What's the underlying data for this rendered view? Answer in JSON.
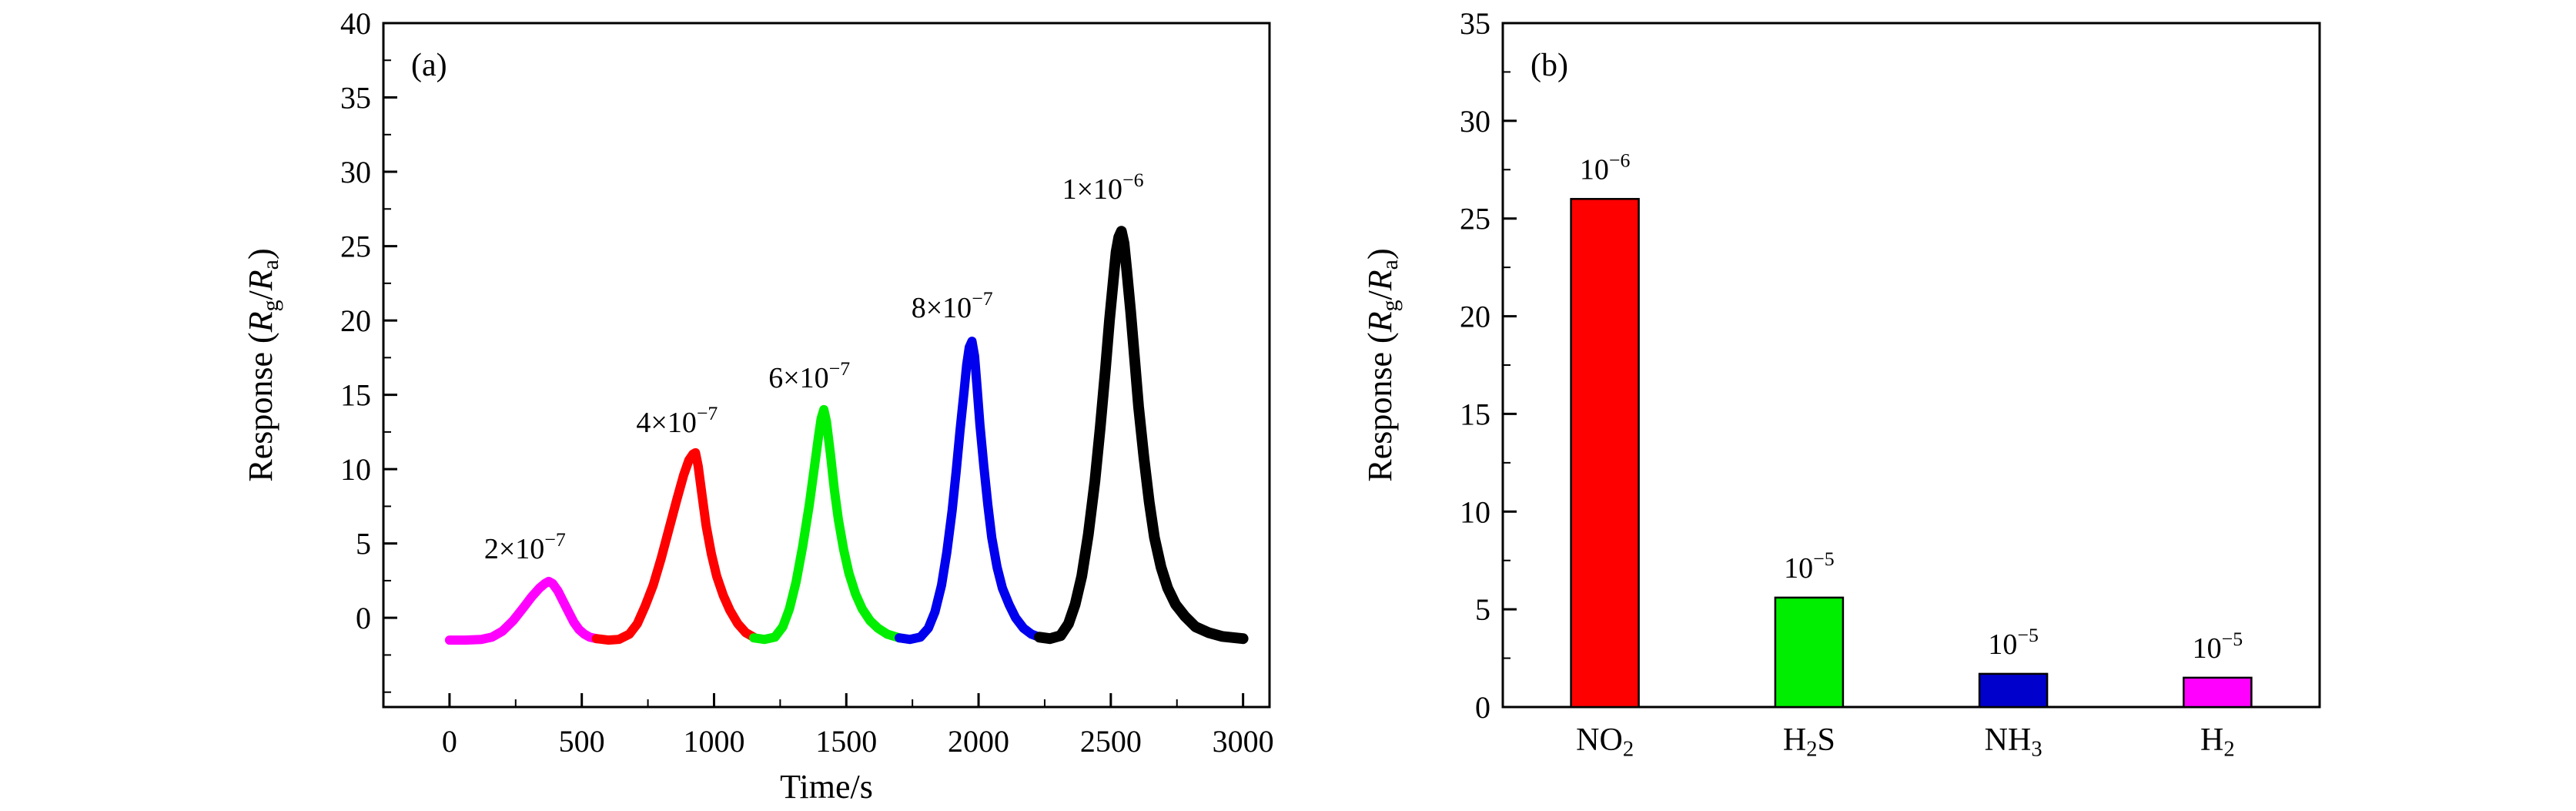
{
  "page": {
    "background": "#ffffff",
    "text_color": "#000000"
  },
  "chart_data": [
    {
      "id": "panel-a",
      "panel_label": "(a)",
      "type": "line",
      "title": "",
      "xlabel": "Time/s",
      "ylabel": "Response ($R$_{g}/$R$_{a})",
      "xlim": [
        -250,
        3100
      ],
      "ylim": [
        -6,
        40
      ],
      "xticks": [
        0,
        500,
        1000,
        1500,
        2000,
        2500,
        3000
      ],
      "yticks": [
        0,
        5,
        10,
        15,
        20,
        25,
        30,
        35,
        40
      ],
      "x_minor_step": 250,
      "y_minor_step": 2.5,
      "grid": false,
      "legend": "none",
      "series": [
        {
          "id": "conc-2e-7",
          "name": "2×10^{−7}",
          "color": "#ff00ff",
          "width": 12,
          "points": [
            [
              0,
              -1.5
            ],
            [
              60,
              -1.5
            ],
            [
              120,
              -1.45
            ],
            [
              160,
              -1.3
            ],
            [
              200,
              -0.9
            ],
            [
              240,
              -0.2
            ],
            [
              280,
              0.7
            ],
            [
              310,
              1.4
            ],
            [
              340,
              2.0
            ],
            [
              360,
              2.3
            ],
            [
              375,
              2.45
            ],
            [
              390,
              2.3
            ],
            [
              410,
              1.8
            ],
            [
              430,
              1.1
            ],
            [
              450,
              0.4
            ],
            [
              470,
              -0.3
            ],
            [
              490,
              -0.8
            ],
            [
              510,
              -1.1
            ],
            [
              530,
              -1.3
            ],
            [
              555,
              -1.4
            ]
          ]
        },
        {
          "id": "conc-4e-7",
          "name": "4×10^{−7}",
          "color": "#ff0000",
          "width": 12,
          "points": [
            [
              555,
              -1.4
            ],
            [
              600,
              -1.5
            ],
            [
              640,
              -1.45
            ],
            [
              680,
              -1.1
            ],
            [
              710,
              -0.4
            ],
            [
              740,
              0.8
            ],
            [
              770,
              2.2
            ],
            [
              800,
              4.0
            ],
            [
              830,
              6.0
            ],
            [
              860,
              8.0
            ],
            [
              885,
              9.6
            ],
            [
              905,
              10.6
            ],
            [
              920,
              11.0
            ],
            [
              930,
              11.1
            ],
            [
              940,
              10.2
            ],
            [
              955,
              8.2
            ],
            [
              970,
              6.2
            ],
            [
              990,
              4.3
            ],
            [
              1010,
              2.8
            ],
            [
              1035,
              1.5
            ],
            [
              1060,
              0.5
            ],
            [
              1090,
              -0.4
            ],
            [
              1120,
              -1.0
            ],
            [
              1150,
              -1.3
            ]
          ]
        },
        {
          "id": "conc-6e-7",
          "name": "6×10^{−7}",
          "color": "#00ee00",
          "width": 12,
          "points": [
            [
              1150,
              -1.35
            ],
            [
              1190,
              -1.45
            ],
            [
              1230,
              -1.3
            ],
            [
              1260,
              -0.6
            ],
            [
              1285,
              0.6
            ],
            [
              1310,
              2.4
            ],
            [
              1335,
              4.8
            ],
            [
              1360,
              7.6
            ],
            [
              1380,
              10.2
            ],
            [
              1395,
              12.2
            ],
            [
              1405,
              13.4
            ],
            [
              1415,
              14.0
            ],
            [
              1425,
              13.2
            ],
            [
              1440,
              11.0
            ],
            [
              1455,
              8.6
            ],
            [
              1470,
              6.6
            ],
            [
              1490,
              4.6
            ],
            [
              1510,
              3.0
            ],
            [
              1535,
              1.6
            ],
            [
              1560,
              0.6
            ],
            [
              1590,
              -0.2
            ],
            [
              1620,
              -0.7
            ],
            [
              1655,
              -1.1
            ],
            [
              1700,
              -1.35
            ]
          ]
        },
        {
          "id": "conc-8e-7",
          "name": "8×10^{−7}",
          "color": "#0000ee",
          "width": 12,
          "points": [
            [
              1700,
              -1.35
            ],
            [
              1740,
              -1.45
            ],
            [
              1780,
              -1.3
            ],
            [
              1810,
              -0.7
            ],
            [
              1835,
              0.4
            ],
            [
              1860,
              2.2
            ],
            [
              1880,
              4.4
            ],
            [
              1900,
              7.2
            ],
            [
              1915,
              9.8
            ],
            [
              1930,
              12.6
            ],
            [
              1945,
              15.2
            ],
            [
              1955,
              17.0
            ],
            [
              1965,
              18.2
            ],
            [
              1975,
              18.6
            ],
            [
              1985,
              17.6
            ],
            [
              1995,
              15.4
            ],
            [
              2005,
              13.0
            ],
            [
              2020,
              10.2
            ],
            [
              2035,
              7.6
            ],
            [
              2050,
              5.4
            ],
            [
              2070,
              3.4
            ],
            [
              2090,
              2.0
            ],
            [
              2115,
              0.9
            ],
            [
              2140,
              0.0
            ],
            [
              2170,
              -0.7
            ],
            [
              2200,
              -1.1
            ],
            [
              2230,
              -1.3
            ]
          ]
        },
        {
          "id": "conc-1e-6",
          "name": "1×10^{−6}",
          "color": "#000000",
          "width": 14,
          "points": [
            [
              2230,
              -1.3
            ],
            [
              2270,
              -1.4
            ],
            [
              2310,
              -1.2
            ],
            [
              2340,
              -0.4
            ],
            [
              2365,
              0.9
            ],
            [
              2390,
              2.8
            ],
            [
              2415,
              5.6
            ],
            [
              2440,
              9.2
            ],
            [
              2460,
              12.8
            ],
            [
              2480,
              16.8
            ],
            [
              2495,
              20.0
            ],
            [
              2510,
              22.8
            ],
            [
              2520,
              24.6
            ],
            [
              2530,
              25.6
            ],
            [
              2540,
              26.0
            ],
            [
              2550,
              25.2
            ],
            [
              2560,
              23.4
            ],
            [
              2575,
              20.6
            ],
            [
              2590,
              17.4
            ],
            [
              2605,
              14.2
            ],
            [
              2625,
              10.8
            ],
            [
              2645,
              7.8
            ],
            [
              2665,
              5.4
            ],
            [
              2690,
              3.4
            ],
            [
              2715,
              2.0
            ],
            [
              2745,
              0.9
            ],
            [
              2780,
              0.1
            ],
            [
              2820,
              -0.6
            ],
            [
              2870,
              -1.0
            ],
            [
              2920,
              -1.25
            ],
            [
              3000,
              -1.4
            ]
          ]
        }
      ],
      "annotations": [
        {
          "text": "2×10^{−7}",
          "x": 285,
          "y": 4.0
        },
        {
          "text": "4×10^{−7}",
          "x": 860,
          "y": 12.5
        },
        {
          "text": "6×10^{−7}",
          "x": 1360,
          "y": 15.5
        },
        {
          "text": "8×10^{−7}",
          "x": 1900,
          "y": 20.2
        },
        {
          "text": "1×10^{−6}",
          "x": 2470,
          "y": 28.2
        }
      ]
    },
    {
      "id": "panel-b",
      "panel_label": "(b)",
      "type": "bar",
      "title": "",
      "xlabel": "",
      "ylabel": "Response ($R$_{g}/$R$_{a})",
      "ylim": [
        0,
        35
      ],
      "yticks": [
        0,
        5,
        10,
        15,
        20,
        25,
        30,
        35
      ],
      "y_minor_step": 2.5,
      "grid": false,
      "categories": [
        "NO_{2}",
        "H_{2}S",
        "NH_{3}",
        "H_{2}"
      ],
      "values": [
        26,
        5.6,
        1.7,
        1.5
      ],
      "bar_colors": [
        "#ff0000",
        "#00ee00",
        "#0000cc",
        "#ff00ff"
      ],
      "bar_labels": [
        "10^{−6}",
        "10^{−5}",
        "10^{−5}",
        "10^{−5}"
      ]
    }
  ],
  "layout_note": ""
}
